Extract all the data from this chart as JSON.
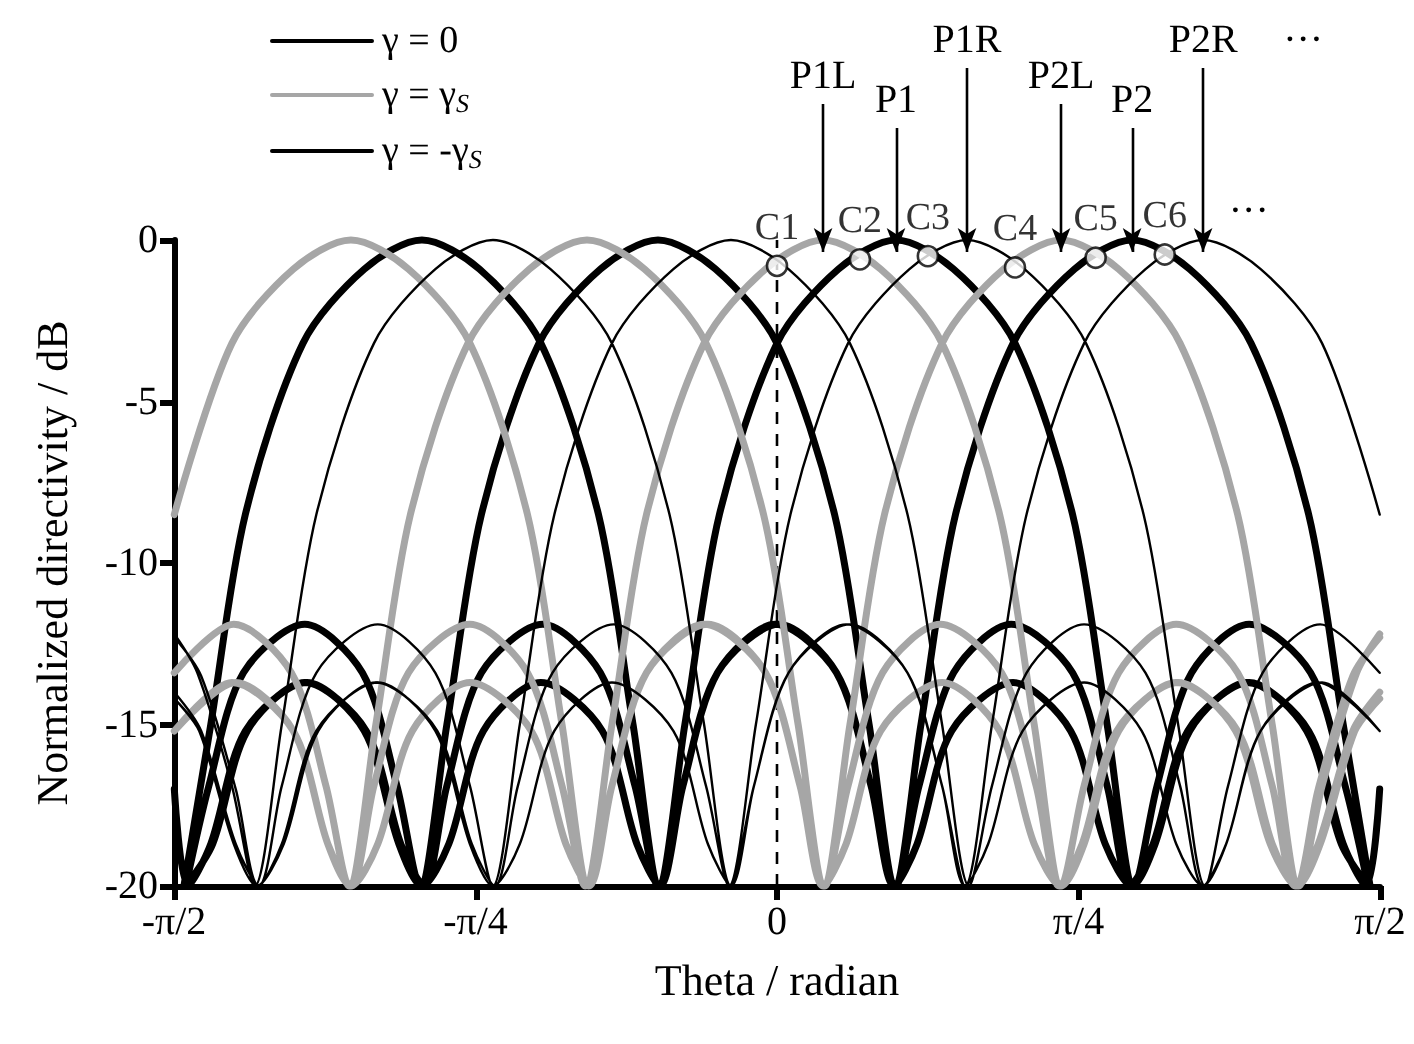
{
  "chart_data": {
    "type": "line",
    "xlabel": "Theta / radian",
    "ylabel": "Normalized directivity / dB",
    "xlim": [
      -1.5708,
      1.5708
    ],
    "xticks": [
      {
        "value": -1.5708,
        "label": "-π/2"
      },
      {
        "value": -0.7854,
        "label": "-π/4"
      },
      0,
      {
        "value": 0.7854,
        "label": "π/4"
      },
      {
        "value": 1.5708,
        "label": "π/2"
      }
    ],
    "ylim": [
      -20,
      0
    ],
    "yticks": [
      -20,
      -15,
      -10,
      -5,
      0
    ],
    "legend": "top left",
    "line_style": "solid",
    "marker": "none",
    "series": [
      {
        "name": "γ = 0",
        "color": "#000000",
        "x": [
          -1.545,
          -1.475,
          -1.385,
          -1.235,
          -1.075,
          -0.925,
          -0.775,
          -0.615,
          -0.465,
          -0.375,
          -0.305,
          -0.245,
          -0.155,
          -0.005,
          0.155,
          0.245,
          0.305,
          0.365,
          0.455,
          0.615,
          0.765,
          0.855,
          0.925,
          0.985,
          1.075,
          1.225,
          1.385,
          1.475,
          1.535,
          1.57,
          null,
          -1.54,
          -1.48,
          -1.39,
          -1.23,
          -1.08,
          -0.99,
          -0.93,
          -0.86,
          -0.77,
          -0.62,
          -0.46,
          -0.31,
          -0.16,
          0,
          0.15,
          0.24,
          0.31,
          0.37,
          0.46,
          0.61,
          0.77,
          0.86,
          0.92,
          0.98,
          1.07,
          1.23,
          1.38,
          1.47,
          1.54,
          null,
          -1.54,
          -1.47,
          -1.38,
          -1.23,
          -1.07,
          -0.98,
          -0.92,
          -0.86,
          -0.77,
          -0.61,
          -0.46,
          -0.37,
          -0.31,
          -0.24,
          -0.15,
          0,
          0.16,
          0.31,
          0.46,
          0.62,
          0.77,
          0.86,
          0.93,
          0.99,
          1.08,
          1.23,
          1.39,
          1.48,
          1.54,
          null,
          -1.57,
          -1.535,
          -1.475,
          -1.385,
          -1.225,
          -1.075,
          -0.985,
          -0.925,
          -0.855,
          -0.765,
          -0.615,
          -0.455,
          -0.365,
          -0.305,
          -0.245,
          -0.155,
          0.005,
          0.155,
          0.245,
          0.305,
          0.375,
          0.465,
          0.615,
          0.775,
          0.925,
          1.075,
          1.235,
          1.385,
          1.475,
          1.545
        ],
        "values": [
          -20,
          -15,
          -8.5,
          -3.2,
          -0.9,
          0,
          -0.9,
          -3.2,
          -8.5,
          -15,
          -20,
          -16.9,
          -13.4,
          -11.9,
          -13.4,
          -16.9,
          -20,
          -18.7,
          -15.2,
          -13.7,
          -15.2,
          -18.7,
          -20,
          -18.7,
          -15.2,
          -13.7,
          -15.2,
          -18.7,
          -20,
          -17,
          null,
          -20,
          -16.9,
          -13.4,
          -11.9,
          -13.4,
          -16.9,
          -20,
          -15,
          -8.5,
          -3.2,
          -0.9,
          0,
          -0.9,
          -3.2,
          -8.5,
          -15,
          -20,
          -16.9,
          -13.4,
          -11.9,
          -13.4,
          -16.9,
          -20,
          -18.7,
          -15.2,
          -13.7,
          -15.2,
          -18.7,
          -20,
          null,
          -20,
          -18.7,
          -15.2,
          -13.7,
          -15.2,
          -18.7,
          -20,
          -16.9,
          -13.4,
          -11.9,
          -13.4,
          -16.9,
          -20,
          -15,
          -8.5,
          -3.2,
          -0.9,
          0,
          -0.9,
          -3.2,
          -8.5,
          -15,
          -20,
          -16.9,
          -13.4,
          -11.9,
          -13.4,
          -16.9,
          -20,
          null,
          -17,
          -20,
          -18.7,
          -15.2,
          -13.7,
          -15.2,
          -18.7,
          -20,
          -18.7,
          -15.2,
          -13.7,
          -15.2,
          -18.7,
          -20,
          -16.9,
          -13.4,
          -11.9,
          -13.4,
          -16.9,
          -20,
          -15,
          -8.5,
          -3.2,
          -0.9,
          0,
          -0.9,
          -3.2,
          -8.5,
          -15,
          -20
        ]
      },
      {
        "name": "γ = γ$_{S}$",
        "color": "#a6a6a6",
        "x": [
          -1.57,
          -1.42,
          -1.26,
          -1.11,
          -0.96,
          -0.8,
          -0.65,
          -0.56,
          -0.49,
          -0.43,
          -0.34,
          -0.19,
          -0.03,
          0.06,
          0.12,
          0.18,
          0.27,
          0.43,
          0.58,
          0.67,
          0.74,
          0.8,
          0.89,
          1.04,
          1.2,
          1.29,
          1.35,
          1.41,
          1.5,
          1.57,
          null,
          -1.57,
          -1.415,
          -1.265,
          -1.175,
          -1.115,
          -1.045,
          -0.955,
          -0.805,
          -0.645,
          -0.495,
          -0.345,
          -0.185,
          -0.035,
          0.055,
          0.125,
          0.185,
          0.275,
          0.425,
          0.585,
          0.675,
          0.735,
          0.795,
          0.885,
          1.045,
          1.195,
          1.285,
          1.355,
          1.415,
          1.505,
          1.57,
          null,
          -1.57,
          -1.42,
          -1.26,
          -1.17,
          -1.11,
          -1.05,
          -0.96,
          -0.8,
          -0.65,
          -0.56,
          -0.5,
          -0.43,
          -0.34,
          -0.19,
          -0.03,
          0.12,
          0.27,
          0.43,
          0.58,
          0.67,
          0.74,
          0.8,
          0.89,
          1.04,
          1.2,
          1.29,
          1.35,
          1.41,
          1.5,
          1.57,
          null,
          -1.57,
          -1.41,
          -1.26,
          -1.17,
          -1.11,
          -1.04,
          -0.95,
          -0.8,
          -0.64,
          -0.55,
          -0.49,
          -0.43,
          -0.34,
          -0.18,
          -0.03,
          0.06,
          0.12,
          0.19,
          0.28,
          0.43,
          0.59,
          0.74,
          0.89,
          1.05,
          1.2,
          1.29,
          1.36,
          1.42,
          1.51,
          1.57
        ],
        "values": [
          -8.5,
          -3.2,
          -0.9,
          0,
          -0.9,
          -3.2,
          -8.5,
          -15,
          -20,
          -16.9,
          -13.4,
          -11.9,
          -13.4,
          -16.9,
          -20,
          -18.7,
          -15.2,
          -13.7,
          -15.2,
          -18.7,
          -20,
          -18.7,
          -15.2,
          -13.7,
          -15.2,
          -18.7,
          -20,
          -17,
          -13.5,
          -12.3,
          null,
          -13.4,
          -11.9,
          -13.4,
          -16.9,
          -20,
          -15,
          -8.5,
          -3.2,
          -0.9,
          0,
          -0.9,
          -3.2,
          -8.5,
          -15,
          -20,
          -16.9,
          -13.4,
          -11.9,
          -13.4,
          -16.9,
          -20,
          -18.7,
          -15.2,
          -13.7,
          -15.2,
          -18.7,
          -20,
          -18.7,
          -15.2,
          -14.2,
          null,
          -15.2,
          -13.7,
          -15.2,
          -18.7,
          -20,
          -16.9,
          -13.4,
          -11.9,
          -13.4,
          -16.9,
          -20,
          -15,
          -8.5,
          -3.2,
          -0.9,
          0,
          -0.9,
          -3.2,
          -8.5,
          -15,
          -20,
          -16.9,
          -13.4,
          -11.9,
          -13.4,
          -16.9,
          -20,
          -18.7,
          -15.2,
          -14,
          null,
          -15.2,
          -13.7,
          -15.2,
          -18.7,
          -20,
          -18.7,
          -15.2,
          -13.7,
          -15.2,
          -18.7,
          -20,
          -16.9,
          -13.4,
          -11.9,
          -13.4,
          -16.9,
          -20,
          -15,
          -8.5,
          -3.2,
          -0.9,
          0,
          -0.9,
          -3.2,
          -8.5,
          -15,
          -20,
          -16.9,
          -13.4,
          -12.2
        ]
      },
      {
        "name": "γ = -γ$_{S}$",
        "color": "#000000",
        "x": [
          -1.57,
          -1.51,
          -1.42,
          -1.36,
          -1.29,
          -1.2,
          -1.05,
          -0.89,
          -0.74,
          -0.59,
          -0.43,
          -0.28,
          -0.19,
          -0.12,
          -0.06,
          0.03,
          0.18,
          0.34,
          0.43,
          0.49,
          0.55,
          0.64,
          0.8,
          0.95,
          1.04,
          1.11,
          1.17,
          1.26,
          1.41,
          1.57,
          null,
          -1.57,
          -1.5,
          -1.41,
          -1.35,
          -1.29,
          -1.2,
          -1.04,
          -0.89,
          -0.8,
          -0.74,
          -0.67,
          -0.58,
          -0.43,
          -0.27,
          -0.12,
          0.03,
          0.19,
          0.34,
          0.43,
          0.5,
          0.56,
          0.65,
          0.8,
          0.96,
          1.05,
          1.11,
          1.17,
          1.26,
          1.42,
          1.57,
          null,
          -1.57,
          -1.505,
          -1.415,
          -1.355,
          -1.285,
          -1.195,
          -1.045,
          -0.885,
          -0.795,
          -0.735,
          -0.675,
          -0.585,
          -0.425,
          -0.275,
          -0.185,
          -0.125,
          -0.055,
          0.035,
          0.185,
          0.345,
          0.495,
          0.645,
          0.805,
          0.955,
          1.045,
          1.115,
          1.175,
          1.265,
          1.415,
          1.57,
          null,
          -1.57,
          -1.5,
          -1.41,
          -1.35,
          -1.29,
          -1.2,
          -1.04,
          -0.89,
          -0.8,
          -0.74,
          -0.67,
          -0.58,
          -0.43,
          -0.27,
          -0.18,
          -0.12,
          -0.06,
          0.03,
          0.19,
          0.34,
          0.43,
          0.49,
          0.56,
          0.65,
          0.8,
          0.96,
          1.11,
          1.26,
          1.42,
          1.57
        ],
        "values": [
          -12.2,
          -13.4,
          -16.9,
          -20,
          -15,
          -8.5,
          -3.2,
          -0.9,
          0,
          -0.9,
          -3.2,
          -8.5,
          -15,
          -20,
          -16.9,
          -13.4,
          -11.9,
          -13.4,
          -16.9,
          -20,
          -18.7,
          -15.2,
          -13.7,
          -15.2,
          -18.7,
          -20,
          -18.7,
          -15.2,
          -13.7,
          -15.2,
          null,
          -14,
          -15.2,
          -18.7,
          -20,
          -16.9,
          -13.4,
          -11.9,
          -13.4,
          -16.9,
          -20,
          -15,
          -8.5,
          -3.2,
          -0.9,
          0,
          -0.9,
          -3.2,
          -8.5,
          -15,
          -20,
          -16.9,
          -13.4,
          -11.9,
          -13.4,
          -16.9,
          -20,
          -18.7,
          -15.2,
          -13.7,
          -15.2,
          null,
          -14.2,
          -15.2,
          -18.7,
          -20,
          -18.7,
          -15.2,
          -13.7,
          -15.2,
          -18.7,
          -20,
          -16.9,
          -13.4,
          -11.9,
          -13.4,
          -16.9,
          -20,
          -15,
          -8.5,
          -3.2,
          -0.9,
          0,
          -0.9,
          -3.2,
          -8.5,
          -15,
          -20,
          -16.9,
          -13.4,
          -11.9,
          -13.4,
          null,
          -12.3,
          -13.5,
          -17,
          -20,
          -18.7,
          -15.2,
          -13.7,
          -15.2,
          -18.7,
          -20,
          -18.7,
          -15.2,
          -13.7,
          -15.2,
          -18.7,
          -20,
          -16.9,
          -13.4,
          -11.9,
          -13.4,
          -16.9,
          -20,
          -15,
          -8.5,
          -3.2,
          -0.9,
          0,
          -0.9,
          -3.2,
          -8.5
        ]
      },
      {
        "type": "scatter",
        "marker": "circle",
        "color": "#000000",
        "x": [
          0,
          0.216,
          0.393,
          0.62,
          0.83,
          1.01
        ],
        "values": [
          -0.8,
          -0.6,
          -0.5,
          -0.85,
          -0.55,
          -0.45
        ],
        "value_labels": [
          "C1",
          "C2",
          "C3",
          "C4",
          "C5",
          "C6"
        ]
      }
    ],
    "ref_lines": [
      {
        "axis": "x",
        "value": 0,
        "line_style": "dashed"
      }
    ],
    "annotations": [
      {
        "text": "P1L",
        "x": 0.12,
        "y": 0
      },
      {
        "text": "P1",
        "x": 0.31,
        "y": 0
      },
      {
        "text": "P1R",
        "x": 0.495,
        "y": 0
      },
      {
        "text": "P2L",
        "x": 0.74,
        "y": 0
      },
      {
        "text": "P2",
        "x": 0.925,
        "y": 0
      },
      {
        "text": "P2R",
        "x": 1.11,
        "y": 0
      },
      "···",
      "···"
    ]
  }
}
